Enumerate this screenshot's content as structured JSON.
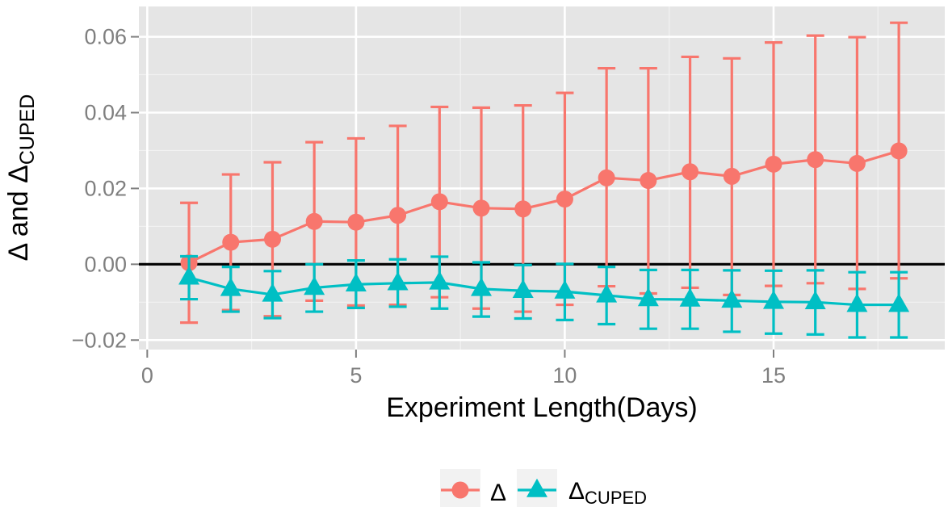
{
  "chart_data": {
    "type": "line",
    "xlabel": "Experiment Length(Days)",
    "ylabel": "Δ and ΔCUPED",
    "ylabel_parts": {
      "main": "Δ and Δ",
      "sub": "CUPED"
    },
    "xlim": [
      -0.2,
      19.1
    ],
    "ylim": [
      -0.0225,
      0.068
    ],
    "x_ticks": [
      0,
      5,
      10,
      15
    ],
    "y_ticks": [
      -0.02,
      0.0,
      0.02,
      0.04,
      0.06
    ],
    "y_tick_labels": [
      "−0.02",
      "0.00",
      "0.02",
      "0.04",
      "0.06"
    ],
    "hline": 0,
    "grid": true,
    "legend_position": "bottom",
    "series": [
      {
        "name": "Δ",
        "name_main": "Δ",
        "name_sub": "",
        "color": "#F8766D",
        "marker": "circle",
        "x": [
          1,
          2,
          3,
          4,
          5,
          6,
          7,
          8,
          9,
          10,
          11,
          12,
          13,
          14,
          15,
          16,
          17,
          18
        ],
        "y": [
          0.0004,
          0.0058,
          0.0066,
          0.0113,
          0.0111,
          0.0129,
          0.0165,
          0.0148,
          0.0146,
          0.0172,
          0.0228,
          0.0221,
          0.0244,
          0.0232,
          0.0264,
          0.0276,
          0.0266,
          0.0299
        ],
        "lower": [
          -0.0154,
          -0.0121,
          -0.0137,
          -0.0096,
          -0.0109,
          -0.0107,
          -0.0087,
          -0.0117,
          -0.0125,
          -0.0107,
          -0.0058,
          -0.0077,
          -0.0062,
          -0.0081,
          -0.0057,
          -0.005,
          -0.0065,
          -0.0037
        ],
        "upper": [
          0.0162,
          0.0237,
          0.0269,
          0.0322,
          0.0332,
          0.0365,
          0.0415,
          0.0413,
          0.0419,
          0.0452,
          0.0517,
          0.0517,
          0.0547,
          0.0543,
          0.0585,
          0.0603,
          0.0599,
          0.0637
        ]
      },
      {
        "name": "ΔCUPED",
        "name_main": "Δ",
        "name_sub": "CUPED",
        "color": "#00BFC4",
        "marker": "triangle",
        "x": [
          1,
          2,
          3,
          4,
          5,
          6,
          7,
          8,
          9,
          10,
          11,
          12,
          13,
          14,
          15,
          16,
          17,
          18
        ],
        "y": [
          -0.0035,
          -0.0065,
          -0.008,
          -0.0062,
          -0.0053,
          -0.005,
          -0.0048,
          -0.0065,
          -0.007,
          -0.0072,
          -0.0082,
          -0.0092,
          -0.0093,
          -0.0096,
          -0.0099,
          -0.01,
          -0.0107,
          -0.0107
        ],
        "lower": [
          -0.0092,
          -0.0125,
          -0.0142,
          -0.0125,
          -0.0115,
          -0.0112,
          -0.0117,
          -0.0138,
          -0.0143,
          -0.0147,
          -0.0158,
          -0.017,
          -0.017,
          -0.0178,
          -0.0183,
          -0.0185,
          -0.0193,
          -0.0193
        ],
        "upper": [
          0.0021,
          -0.0007,
          -0.0018,
          0.0,
          0.001,
          0.0013,
          0.002,
          0.0005,
          -0.0002,
          0.0001,
          -0.0007,
          -0.0015,
          -0.0015,
          -0.0016,
          -0.0017,
          -0.0016,
          -0.0021,
          -0.0021
        ]
      }
    ]
  }
}
